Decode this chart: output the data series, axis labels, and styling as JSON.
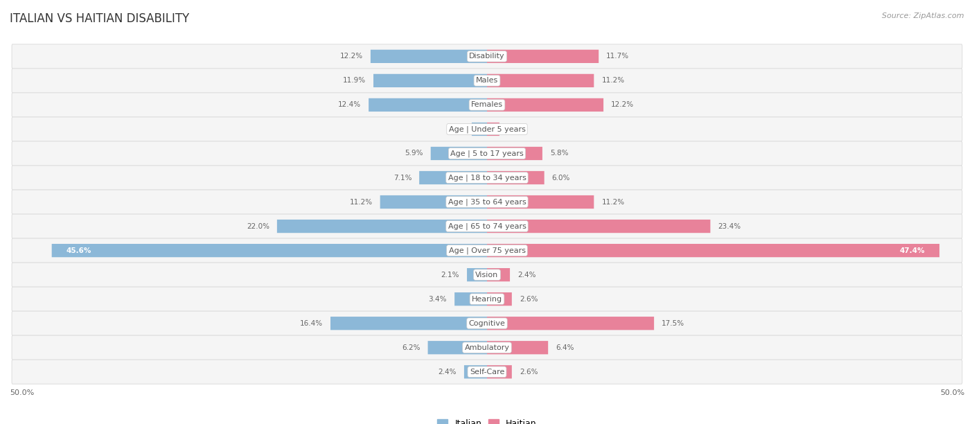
{
  "title": "ITALIAN VS HAITIAN DISABILITY",
  "source": "Source: ZipAtlas.com",
  "categories": [
    "Disability",
    "Males",
    "Females",
    "Age | Under 5 years",
    "Age | 5 to 17 years",
    "Age | 18 to 34 years",
    "Age | 35 to 64 years",
    "Age | 65 to 74 years",
    "Age | Over 75 years",
    "Vision",
    "Hearing",
    "Cognitive",
    "Ambulatory",
    "Self-Care"
  ],
  "italian_values": [
    12.2,
    11.9,
    12.4,
    1.6,
    5.9,
    7.1,
    11.2,
    22.0,
    45.6,
    2.1,
    3.4,
    16.4,
    6.2,
    2.4
  ],
  "haitian_values": [
    11.7,
    11.2,
    12.2,
    1.3,
    5.8,
    6.0,
    11.2,
    23.4,
    47.4,
    2.4,
    2.6,
    17.5,
    6.4,
    2.6
  ],
  "italian_color": "#8cb8d8",
  "haitian_color": "#e8829a",
  "italian_color_light": "#aecfe8",
  "haitian_color_light": "#f0a8bc",
  "italian_label": "Italian",
  "haitian_label": "Haitian",
  "axis_max": 50.0,
  "background_color": "#ffffff",
  "row_card_color": "#f5f5f5",
  "row_card_edge": "#e0e0e0",
  "title_fontsize": 12,
  "label_fontsize": 8,
  "value_fontsize": 7.5,
  "legend_fontsize": 9,
  "source_fontsize": 8
}
